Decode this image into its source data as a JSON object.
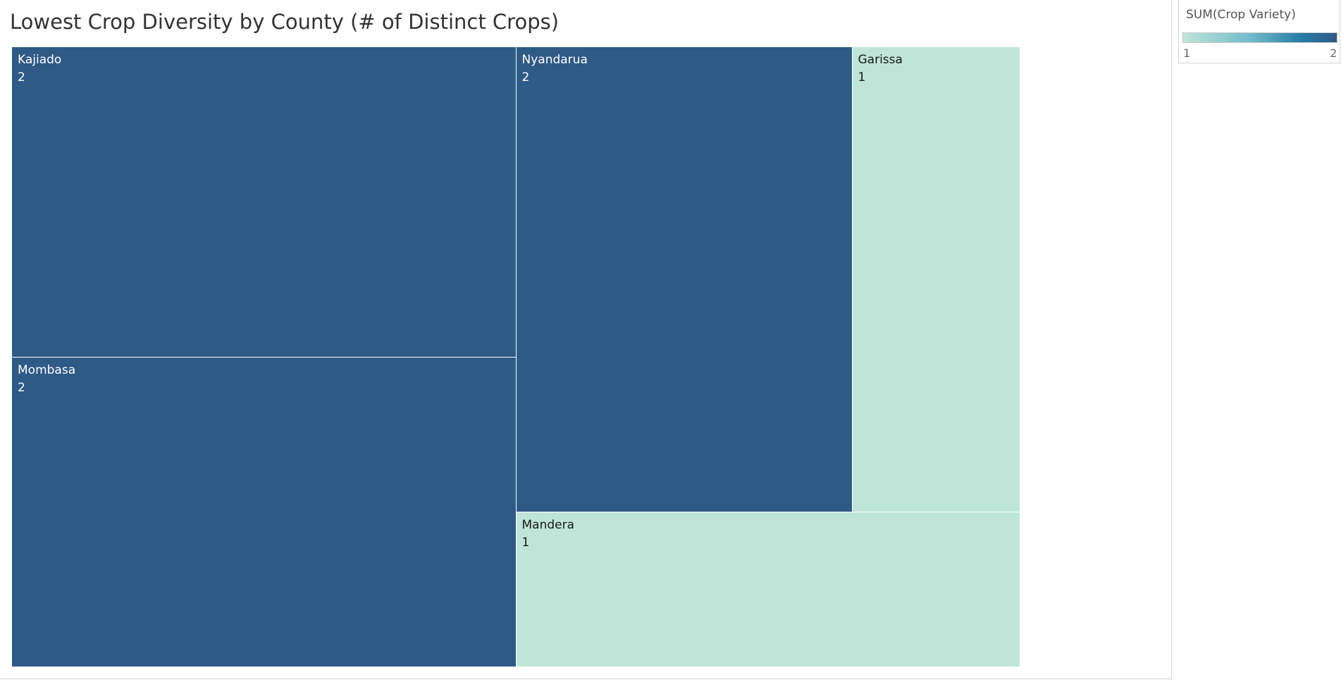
{
  "chart_data": {
    "type": "treemap",
    "title": "Lowest Crop Diversity by County (# of Distinct Crops)",
    "measure": "SUM(Crop Variety)",
    "tiles": [
      {
        "name": "Kajiado",
        "value": 2
      },
      {
        "name": "Mombasa",
        "value": 2
      },
      {
        "name": "Nyandarua",
        "value": 2
      },
      {
        "name": "Garissa",
        "value": 1
      },
      {
        "name": "Mandera",
        "value": 1
      }
    ],
    "color_legend": {
      "title": "SUM(Crop Variety)",
      "min": 1,
      "max": 2,
      "min_label": "1",
      "max_label": "2",
      "min_color": "#bfe5d9",
      "max_color": "#2e5a86"
    },
    "colors": {
      "high": "#2e5a86",
      "low": "#bfe5d9",
      "text_on_high": "#ffffff",
      "text_on_low": "#1a1a1a"
    }
  }
}
